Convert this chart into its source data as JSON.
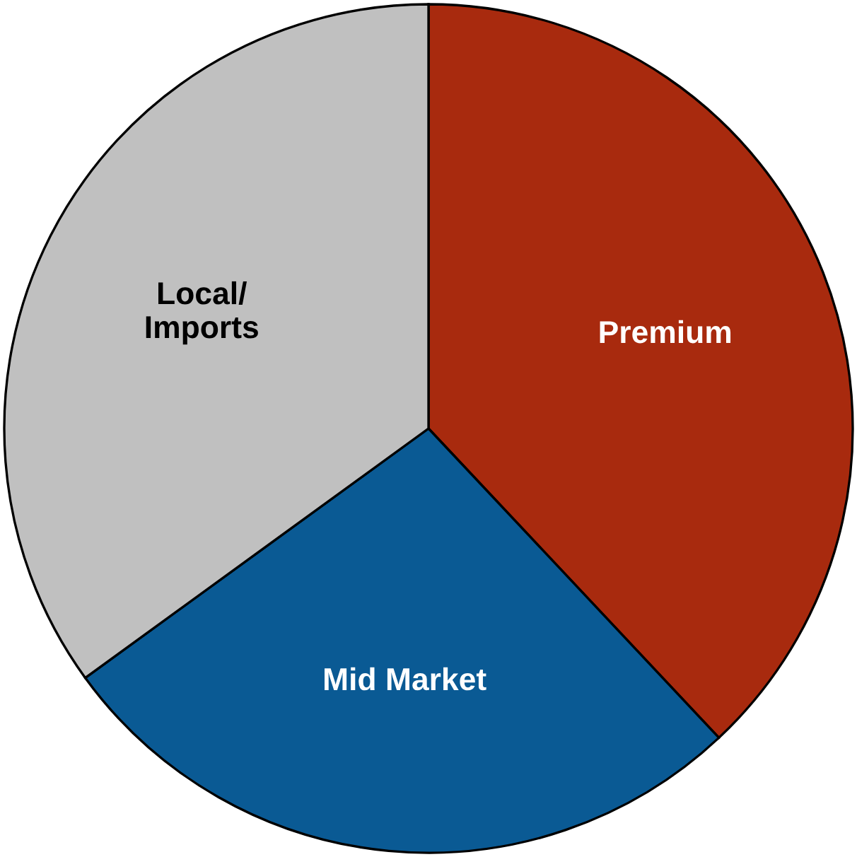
{
  "chart_data": {
    "type": "pie",
    "categories": [
      "Premium",
      "Mid Market",
      "Local/\nImports"
    ],
    "values": [
      38,
      27,
      35
    ],
    "colors": [
      "#a82a0e",
      "#0a5a94",
      "#c0c0c0"
    ]
  }
}
